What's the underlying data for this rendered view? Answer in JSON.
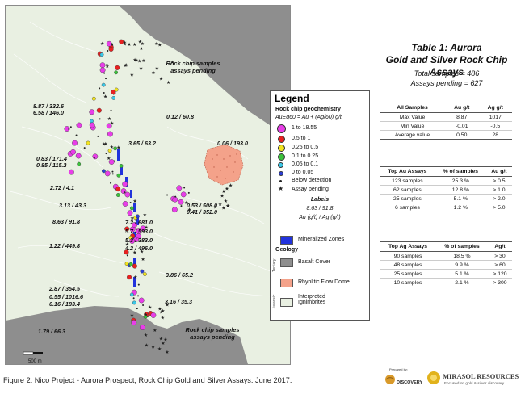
{
  "map": {
    "callouts": {
      "north": "Rock chip samples\nassays pending",
      "south": "Rock chip samples\nassays pending"
    },
    "scale_label": "500 m",
    "assay_labels": [
      {
        "text": "8.87 / 332.6\n6.58 / 146.0",
        "align": "left"
      },
      {
        "text": "0.12 / 60.8",
        "align": "left"
      },
      {
        "text": "0.06 / 193.0",
        "align": "left"
      },
      {
        "text": "3.65 / 63.2",
        "align": "left"
      },
      {
        "text": "0.83 / 171.4\n0.85 / 115.2",
        "align": "left"
      },
      {
        "text": "2.72 / 4.1",
        "align": "left"
      },
      {
        "text": "3.13 / 43.3",
        "align": "left"
      },
      {
        "text": "8.63 / 91.8",
        "align": "left"
      },
      {
        "text": "0.53 / 508.0\n0.41 / 352.0",
        "align": "left"
      },
      {
        "text": "7.2 / 681.0\n5.7 / 593.0\n5.3 / 383.0\n4.2 / 496.0",
        "align": "left"
      },
      {
        "text": "1.22 / 449.8",
        "align": "left"
      },
      {
        "text": "3.86 / 65.2",
        "align": "left"
      },
      {
        "text": "2.87 / 354.5\n0.55 / 1016.6\n0.16 / 183.4",
        "align": "left"
      },
      {
        "text": "3.16 / 35.3",
        "align": "left"
      },
      {
        "text": "1.79 / 66.3",
        "align": "left"
      }
    ]
  },
  "legend": {
    "title": "Legend",
    "subtitle": "Rock chip geochemistry",
    "formula": "AuEq60 = Au + (Ag/60) g/t",
    "classes": [
      {
        "label": "1 to 18.55",
        "color": "#e83ee8"
      },
      {
        "label": "0.5 to 1",
        "color": "#e82020"
      },
      {
        "label": "0.25 to 0.5",
        "color": "#f2e41e"
      },
      {
        "label": "0.1 to 0.25",
        "color": "#3cc23c"
      },
      {
        "label": "0.05 to 0.1",
        "color": "#3ac8e8"
      },
      {
        "label": "0 to 0.05",
        "color": "#2b3fd8"
      }
    ],
    "below_detection": "Below detection",
    "assay_pending": "Assay pending",
    "labels_heading": "Labels",
    "labels_example": "8.63 / 91.8",
    "labels_units": "Au (g/t) / Ag (g/t)",
    "mineralized": "Mineralized Zones",
    "geology_heading": "Geology",
    "basalt": "Basalt Cover",
    "rhyolitic": "Rhyolitic Flow Dome",
    "ignimbrites": "Interpreted\nIgnimbrites",
    "tertiary": "Tertiary",
    "jurassic": "Jurassic"
  },
  "table1": {
    "title": "Table 1: Aurora\nGold and Silver Rock Chip Assays",
    "total": "Total samples = 486",
    "pending": "Assays pending = 627"
  },
  "stats_all": {
    "headers": [
      "All Samples",
      "Au g/t",
      "Ag g/t"
    ],
    "rows": [
      [
        "Max Value",
        "8.87",
        "1017"
      ],
      [
        "Min Value",
        "-0.01",
        "-0.5"
      ],
      [
        "Average value",
        "0.50",
        "28"
      ]
    ]
  },
  "stats_au": {
    "headers": [
      "Top Au Assays",
      "% of samples",
      "Au g/t"
    ],
    "rows": [
      [
        "123 samples",
        "25.3 %",
        "> 0.5"
      ],
      [
        "62 samples",
        "12.8 %",
        "> 1.0"
      ],
      [
        "25 samples",
        "5.1 %",
        "> 2.0"
      ],
      [
        "6 samples",
        "1.2 %",
        "> 5.0"
      ]
    ]
  },
  "stats_ag": {
    "headers": [
      "Top Ag Assays",
      "% of samples",
      "Ag/t"
    ],
    "rows": [
      [
        "90 samples",
        "18.5 %",
        "> 30"
      ],
      [
        "48 samples",
        "9.9 %",
        "> 60"
      ],
      [
        "25 samples",
        "5.1 %",
        "> 120"
      ],
      [
        "10 samples",
        "2.1 %",
        "> 300"
      ]
    ]
  },
  "caption": "Figure 2: Nico Project - Aurora Prospect, Rock Chip Gold and Silver Assays. June 2017.",
  "logos": {
    "prepared_by": "Prepared by:",
    "discovery": "DISCOVERY",
    "mirasol": "MIRASOL RESOURCES",
    "mirasol_tag": "Focused on gold & silver discovery"
  }
}
